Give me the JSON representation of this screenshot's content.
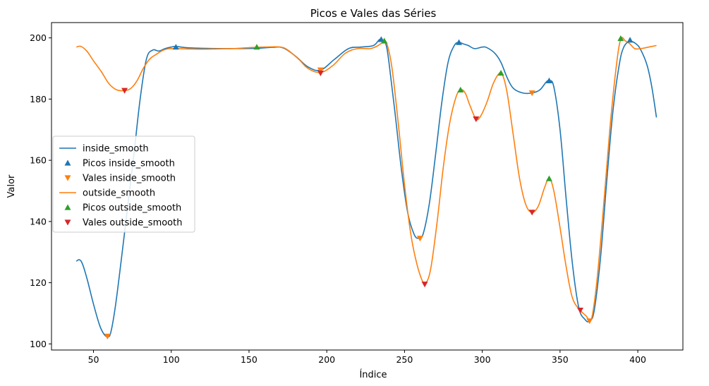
{
  "chart_data": {
    "type": "line",
    "title": "Picos e Vales das Séries",
    "xlabel": "Índice",
    "ylabel": "Valor",
    "xlim": [
      23,
      429
    ],
    "ylim": [
      98,
      205
    ],
    "xticks": [
      50,
      100,
      150,
      200,
      250,
      300,
      350,
      400
    ],
    "yticks": [
      100,
      120,
      140,
      160,
      180,
      200
    ],
    "grid": false,
    "legend_position": "center-left",
    "series": [
      {
        "name": "inside_smooth",
        "kind": "line",
        "color": "#1f77b4",
        "points": [
          [
            39,
            127
          ],
          [
            41,
            127.5
          ],
          [
            43,
            126
          ],
          [
            46,
            121
          ],
          [
            50,
            113
          ],
          [
            54,
            106
          ],
          [
            57,
            103
          ],
          [
            59,
            102.5
          ],
          [
            61,
            103.5
          ],
          [
            64,
            112
          ],
          [
            68,
            128
          ],
          [
            72,
            145
          ],
          [
            76,
            162
          ],
          [
            80,
            180
          ],
          [
            84,
            193
          ],
          [
            88,
            196
          ],
          [
            92,
            195.7
          ],
          [
            96,
            196.5
          ],
          [
            100,
            197
          ],
          [
            103,
            197.2
          ],
          [
            110,
            196.8
          ],
          [
            120,
            196.6
          ],
          [
            130,
            196.5
          ],
          [
            140,
            196.5
          ],
          [
            155,
            196.6
          ],
          [
            165,
            196.9
          ],
          [
            172,
            196.7
          ],
          [
            180,
            194
          ],
          [
            188,
            190.5
          ],
          [
            196,
            189.5
          ],
          [
            205,
            193
          ],
          [
            214,
            196.5
          ],
          [
            222,
            197
          ],
          [
            230,
            197.5
          ],
          [
            234,
            199.5
          ],
          [
            236,
            199
          ],
          [
            238,
            198
          ],
          [
            240,
            192
          ],
          [
            244,
            175
          ],
          [
            248,
            157
          ],
          [
            252,
            143
          ],
          [
            256,
            136
          ],
          [
            259,
            134.5
          ],
          [
            262,
            136
          ],
          [
            266,
            146
          ],
          [
            270,
            162
          ],
          [
            274,
            179
          ],
          [
            278,
            192
          ],
          [
            282,
            197.5
          ],
          [
            285,
            198.5
          ],
          [
            288,
            198
          ],
          [
            291,
            197.5
          ],
          [
            295,
            196.5
          ],
          [
            300,
            197
          ],
          [
            303,
            196.8
          ],
          [
            308,
            195
          ],
          [
            312,
            192
          ],
          [
            316,
            187
          ],
          [
            320,
            183.5
          ],
          [
            326,
            182
          ],
          [
            332,
            182
          ],
          [
            337,
            183
          ],
          [
            341,
            185.5
          ],
          [
            343,
            186
          ],
          [
            346,
            184
          ],
          [
            350,
            170
          ],
          [
            354,
            147
          ],
          [
            358,
            126
          ],
          [
            362,
            112
          ],
          [
            366,
            108
          ],
          [
            369,
            107.5
          ],
          [
            372,
            111
          ],
          [
            376,
            128
          ],
          [
            380,
            153
          ],
          [
            384,
            176
          ],
          [
            388,
            191
          ],
          [
            391,
            197
          ],
          [
            395,
            198.8
          ],
          [
            399,
            198
          ],
          [
            402,
            196
          ],
          [
            406,
            191
          ],
          [
            409,
            184
          ],
          [
            412,
            174
          ]
        ]
      },
      {
        "name": "Picos inside_smooth",
        "kind": "marker",
        "marker": "triangle-up",
        "color": "#1f77b4",
        "points": [
          [
            103,
            197
          ],
          [
            235,
            199.5
          ],
          [
            285,
            198.5
          ],
          [
            343,
            186
          ],
          [
            395,
            199.3
          ]
        ]
      },
      {
        "name": "Vales inside_smooth",
        "kind": "marker",
        "marker": "triangle-down",
        "color": "#ff7f0e",
        "points": [
          [
            59,
            102.5
          ],
          [
            196,
            189.5
          ],
          [
            260,
            134.5
          ],
          [
            332,
            182
          ],
          [
            369,
            107.5
          ]
        ]
      },
      {
        "name": "outside_smooth",
        "kind": "line",
        "color": "#ff7f0e",
        "points": [
          [
            39,
            197
          ],
          [
            42,
            197.2
          ],
          [
            46,
            195.5
          ],
          [
            50,
            192.5
          ],
          [
            55,
            189
          ],
          [
            60,
            185
          ],
          [
            65,
            183
          ],
          [
            70,
            182.8
          ],
          [
            74,
            183.5
          ],
          [
            78,
            186
          ],
          [
            82,
            190
          ],
          [
            86,
            193
          ],
          [
            90,
            194.5
          ],
          [
            95,
            196
          ],
          [
            100,
            196.5
          ],
          [
            110,
            196.4
          ],
          [
            120,
            196.3
          ],
          [
            130,
            196.4
          ],
          [
            140,
            196.5
          ],
          [
            150,
            196.8
          ],
          [
            160,
            197
          ],
          [
            170,
            197
          ],
          [
            175,
            196
          ],
          [
            182,
            193
          ],
          [
            188,
            190
          ],
          [
            196,
            188.7
          ],
          [
            204,
            191
          ],
          [
            212,
            195
          ],
          [
            220,
            196.5
          ],
          [
            228,
            196.5
          ],
          [
            233,
            197.5
          ],
          [
            237,
            198.8
          ],
          [
            239,
            197.5
          ],
          [
            242,
            190
          ],
          [
            246,
            172
          ],
          [
            250,
            152
          ],
          [
            254,
            136
          ],
          [
            258,
            126
          ],
          [
            262,
            120
          ],
          [
            264,
            120
          ],
          [
            267,
            125
          ],
          [
            271,
            140
          ],
          [
            275,
            158
          ],
          [
            279,
            172
          ],
          [
            283,
            180.5
          ],
          [
            286,
            183
          ],
          [
            289,
            182
          ],
          [
            292,
            178
          ],
          [
            296,
            173.5
          ],
          [
            299,
            174.5
          ],
          [
            303,
            179
          ],
          [
            307,
            185
          ],
          [
            311,
            188.5
          ],
          [
            313,
            188
          ],
          [
            316,
            182
          ],
          [
            320,
            168
          ],
          [
            324,
            154
          ],
          [
            328,
            145.5
          ],
          [
            332,
            143
          ],
          [
            336,
            145
          ],
          [
            340,
            151
          ],
          [
            343,
            154
          ],
          [
            346,
            150
          ],
          [
            350,
            138
          ],
          [
            354,
            125
          ],
          [
            358,
            115
          ],
          [
            363,
            111
          ],
          [
            367,
            109
          ],
          [
            369,
            107.5
          ],
          [
            371,
            110
          ],
          [
            374,
            122
          ],
          [
            378,
            145
          ],
          [
            382,
            170
          ],
          [
            386,
            190
          ],
          [
            389,
            199.5
          ],
          [
            392,
            199
          ],
          [
            395,
            198
          ],
          [
            398,
            196.5
          ],
          [
            402,
            196.5
          ],
          [
            407,
            197
          ],
          [
            412,
            197.5
          ]
        ]
      },
      {
        "name": "Picos outside_smooth",
        "kind": "marker",
        "marker": "triangle-up",
        "color": "#2ca02c",
        "points": [
          [
            155,
            197
          ],
          [
            237,
            199
          ],
          [
            286,
            183
          ],
          [
            312,
            188.5
          ],
          [
            343,
            154
          ],
          [
            389,
            199.8
          ]
        ]
      },
      {
        "name": "Vales outside_smooth",
        "kind": "marker",
        "marker": "triangle-down",
        "color": "#d62728",
        "points": [
          [
            70,
            182.8
          ],
          [
            196,
            188.5
          ],
          [
            263,
            119.5
          ],
          [
            296,
            173.5
          ],
          [
            332,
            143
          ],
          [
            363,
            111
          ]
        ]
      }
    ]
  }
}
